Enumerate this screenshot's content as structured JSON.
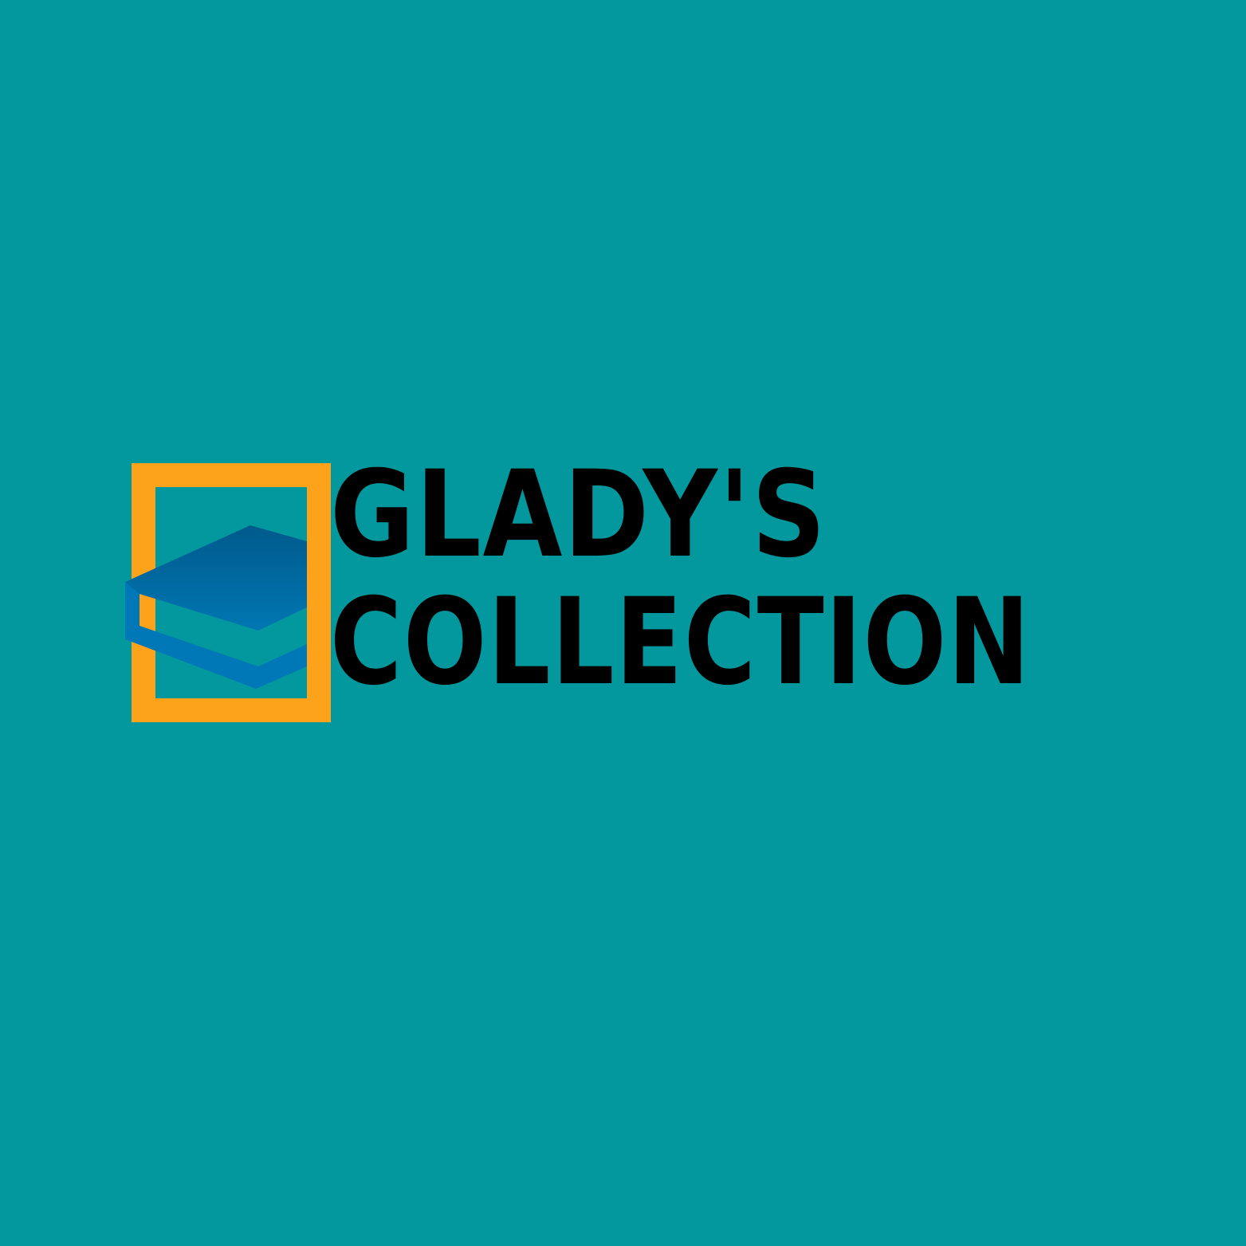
{
  "colors": {
    "background": "#03989E",
    "frame": "#FDA31B",
    "book_top_light": "#0078B4",
    "book_top_dark": "#005A8C",
    "book_spine": "#0077B6",
    "text": "#000000"
  },
  "logo": {
    "icon": "book-stack-icon",
    "line1": "GLADY'S",
    "line2": "COLLECTION"
  }
}
